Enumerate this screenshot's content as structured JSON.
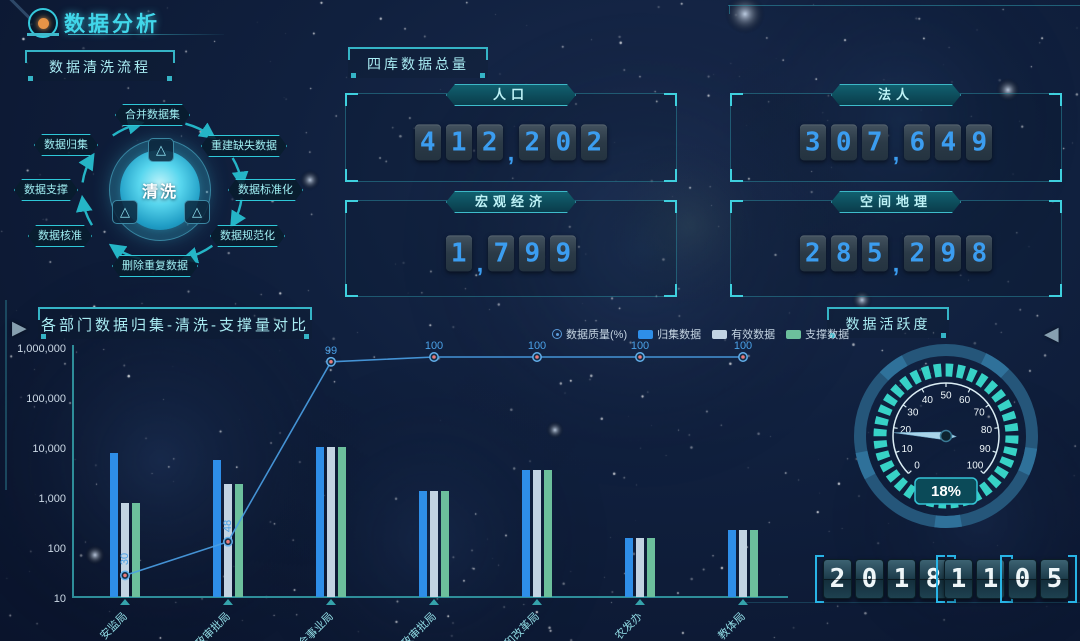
{
  "header": {
    "title": "数据分析"
  },
  "icons": {
    "nav_prev": "▶",
    "nav_next": "◀",
    "flow_node": "△"
  },
  "panels": {
    "cleaning": {
      "title": "数据清洗流程",
      "center_label": "清洗",
      "steps": [
        "合并数据集",
        "重建缺失数据",
        "数据标准化",
        "数据规范化",
        "删除重复数据",
        "数据核准",
        "数据支撑",
        "数据归集"
      ]
    },
    "totals": {
      "title": "四库数据总量",
      "counters": [
        {
          "label": "人口",
          "value": "412,202"
        },
        {
          "label": "法人",
          "value": "307,649"
        },
        {
          "label": "宏观经济",
          "value": "1,799"
        },
        {
          "label": "空间地理",
          "value": "285,298"
        }
      ]
    },
    "comparison": {
      "title": "各部门数据归集-清洗-支撑量对比"
    },
    "activity": {
      "title": "数据活跃度"
    }
  },
  "chart_data": [
    {
      "type": "bar",
      "title": "各部门数据归集-清洗-支撑量对比",
      "categories": [
        "安监局",
        "行政审批局",
        "社会事业局",
        "行政审批局",
        "发展和改革局",
        "农发办",
        "教体局"
      ],
      "series": [
        {
          "name": "归集数据",
          "color": "#2e8ee8",
          "values": [
            7500,
            5500,
            10000,
            1300,
            3500,
            150,
            220
          ]
        },
        {
          "name": "有效数据",
          "color": "#c2d3e2",
          "values": [
            750,
            1800,
            10000,
            1300,
            3500,
            150,
            220
          ]
        },
        {
          "name": "支撑数据",
          "color": "#6cbf9c",
          "values": [
            750,
            1800,
            10000,
            1300,
            3500,
            150,
            220
          ]
        }
      ],
      "line_series": {
        "name": "数据质量(%)",
        "color": "#4aa0e6",
        "values": [
          30,
          48,
          99,
          100,
          100,
          100,
          100
        ]
      },
      "y_axis": {
        "scale": "log",
        "min": 10,
        "max": 1000000,
        "ticks": [
          "1,000,000",
          "100,000",
          "10,000",
          "1,000",
          "100",
          "10"
        ]
      },
      "legend_position": "top-right",
      "grid": false
    },
    {
      "type": "gauge",
      "title": "数据活跃度",
      "value": 18,
      "display": "18%",
      "unit": "%",
      "min": 0,
      "max": 100,
      "tick_labels": [
        "0",
        "10",
        "20",
        "30",
        "40",
        "50",
        "60",
        "70",
        "80",
        "90",
        "100"
      ]
    }
  ],
  "date_display": {
    "groups": [
      "2018",
      "11",
      "05"
    ]
  }
}
